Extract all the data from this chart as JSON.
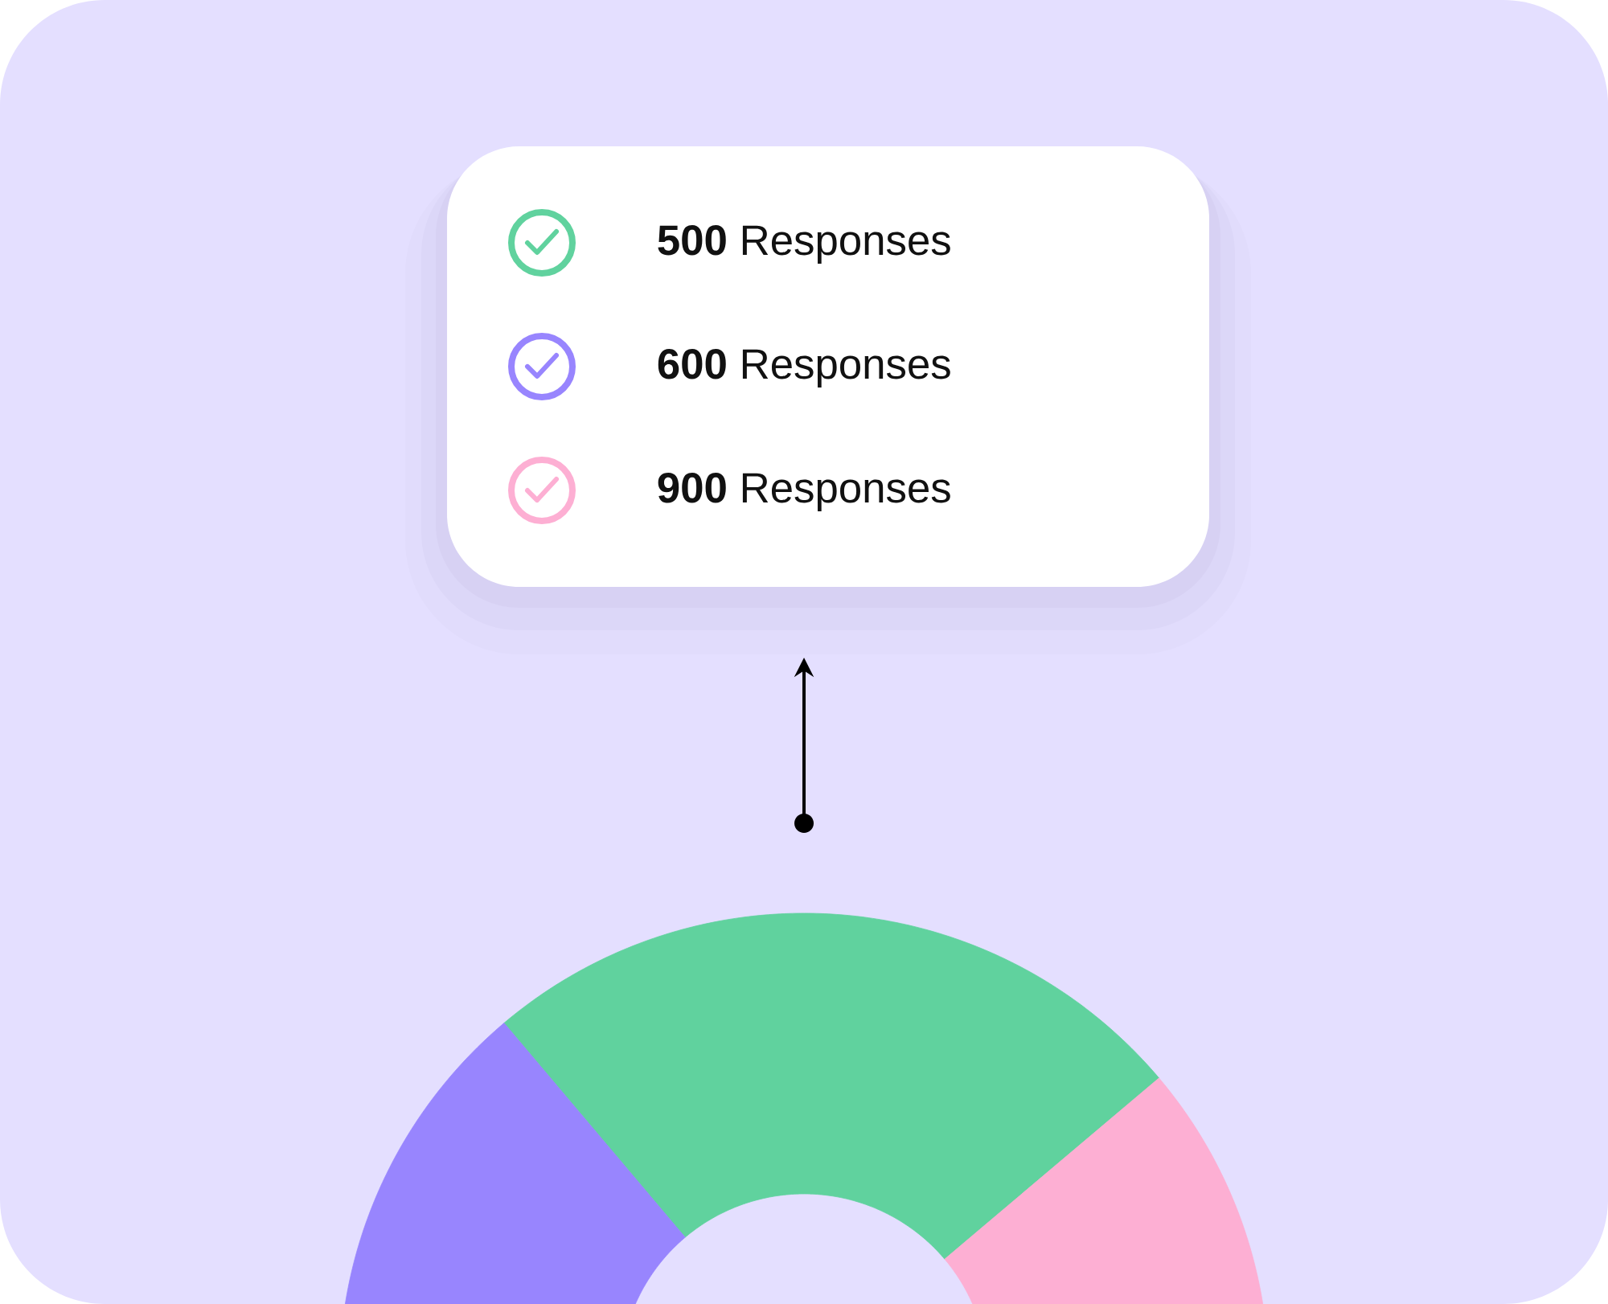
{
  "chart_data": {
    "type": "donut",
    "categories": [
      "**500** Responses",
      "**600** Responses",
      "**900** Responses"
    ],
    "values": [
      500,
      600,
      900
    ],
    "colors": [
      "#60d29e",
      "#9885fe",
      "#fdafd3"
    ],
    "legend": "top"
  }
}
